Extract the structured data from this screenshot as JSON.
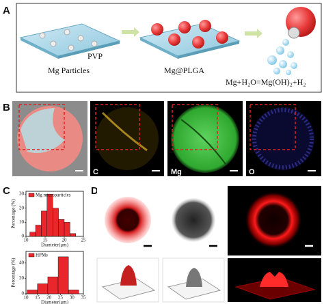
{
  "figure": {
    "panel_labels": [
      "A",
      "B",
      "C",
      "D"
    ],
    "panel_a": {
      "substrate": "PVP",
      "steps": [
        "Mg Particles",
        "Mg@PLGA"
      ],
      "reaction": "Mg+H₂O=Mg(OH)₂+H₂"
    },
    "panel_b": {
      "channels": [
        "C",
        "Mg",
        "O"
      ]
    }
  },
  "chart_data": [
    {
      "type": "histogram",
      "xlabel": "Diameter(μm)",
      "ylabel": "Percentage (%)",
      "bins": [
        11,
        12.5,
        14,
        15.5,
        17,
        18.5,
        20,
        21.5,
        23
      ],
      "series": [
        {
          "name": "Mg microparticles",
          "color": "#e8262b",
          "values": [
            3,
            8,
            18,
            30,
            20,
            12,
            10,
            2
          ]
        }
      ],
      "xlim": [
        10,
        25
      ],
      "xticks": [
        10,
        15,
        20,
        25
      ],
      "ylim": [
        0,
        32
      ],
      "yticks": [
        0,
        10,
        20,
        30
      ]
    },
    {
      "type": "histogram",
      "xlabel": "Diameter(μm)",
      "ylabel": "Percentage (%)",
      "bins": [
        10.5,
        15,
        19.5,
        24,
        28.5,
        33
      ],
      "series": [
        {
          "name": "HPMs",
          "color": "#e8262b",
          "values": [
            5,
            13,
            22,
            48,
            5
          ]
        }
      ],
      "xlim": [
        10,
        35
      ],
      "xticks": [
        10,
        15,
        20,
        25,
        30,
        35
      ],
      "ylim": [
        0,
        55
      ],
      "yticks": [
        0,
        20,
        40
      ]
    }
  ]
}
